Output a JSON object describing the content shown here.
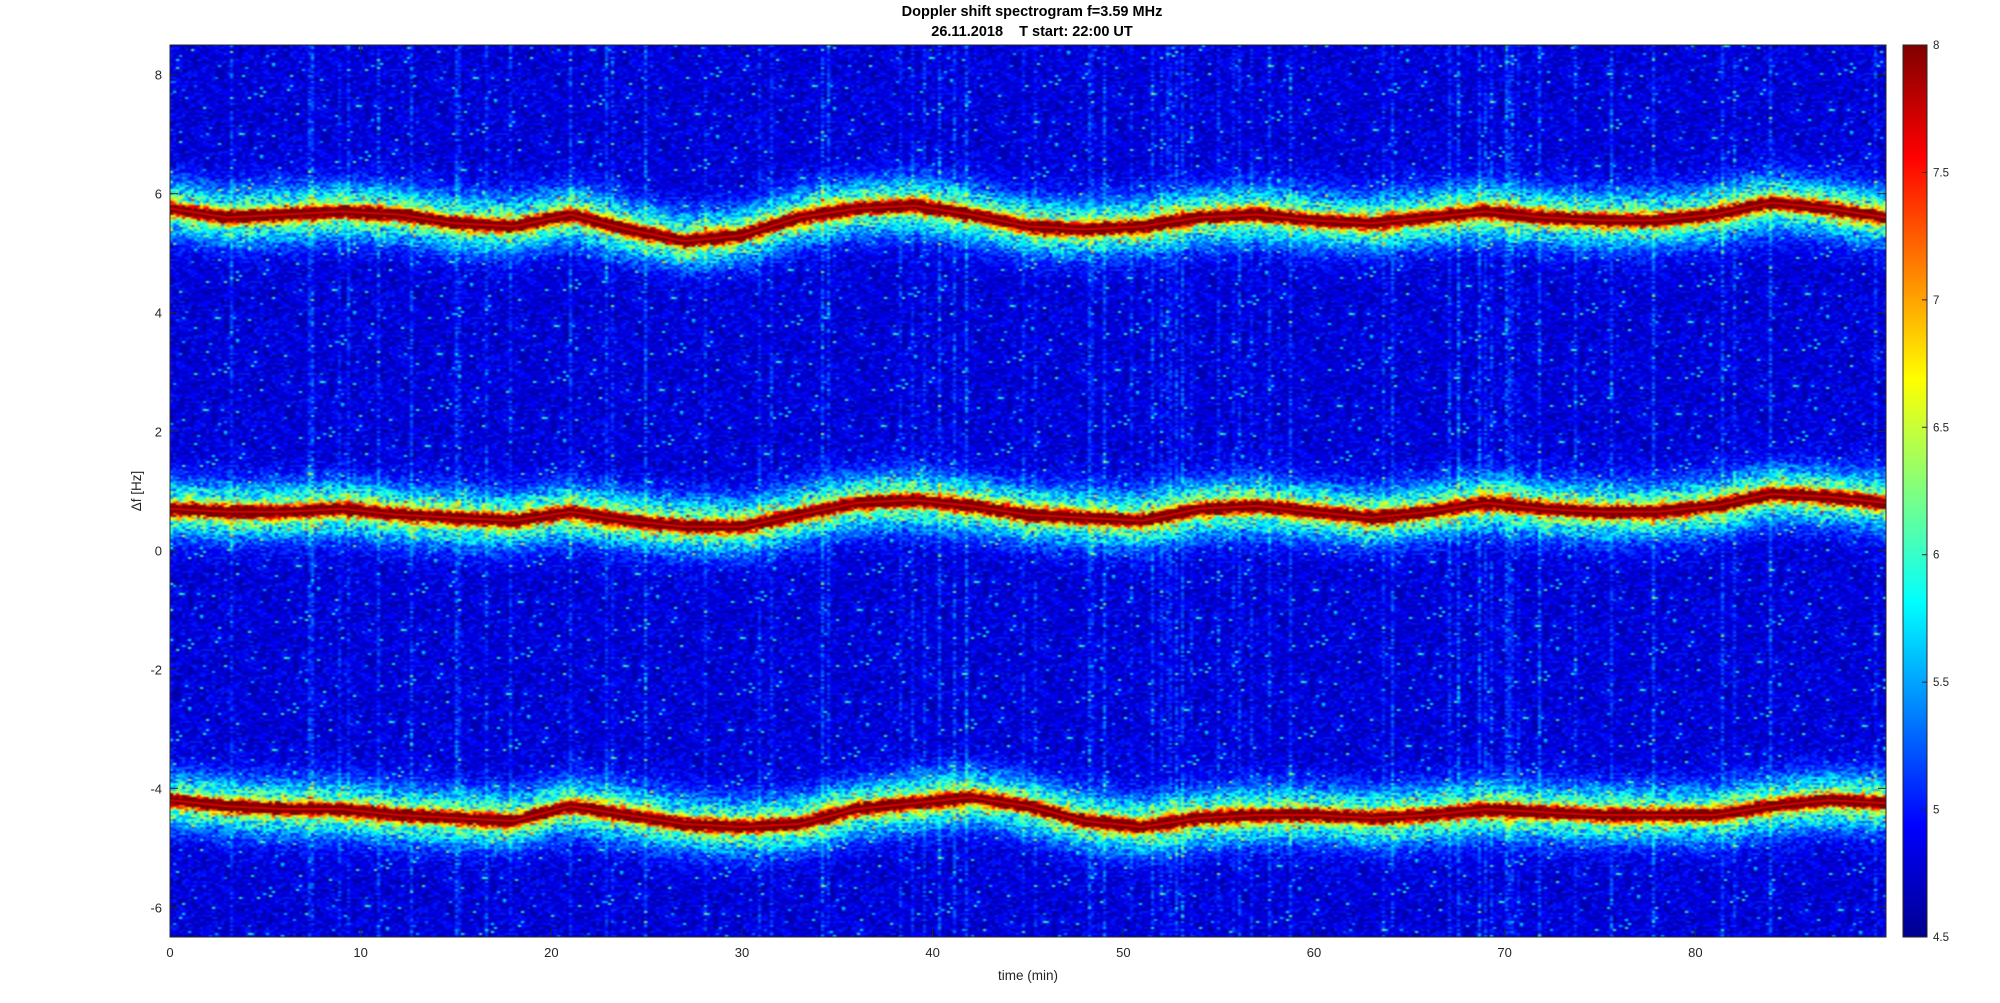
{
  "chart_data": {
    "type": "heatmap",
    "title": "Doppler shift spectrogram f=3.59 MHz",
    "subtitle": "26.11.2018    T start: 22:00 UT",
    "xlabel": "time (min)",
    "ylabel": "Δf [Hz]",
    "xlim": [
      0,
      90
    ],
    "ylim": [
      -6.5,
      8.5
    ],
    "x_ticks": [
      0,
      10,
      20,
      30,
      40,
      50,
      60,
      70,
      80
    ],
    "y_ticks": [
      -6,
      -4,
      -2,
      0,
      2,
      4,
      6,
      8
    ],
    "colormap": "jet",
    "colorbar": {
      "range": [
        4.5,
        8
      ],
      "ticks": [
        4.5,
        5,
        5.5,
        6,
        6.5,
        7,
        7.5,
        8
      ]
    },
    "grid": false,
    "series": [
      {
        "x": [
          0,
          3,
          6,
          9,
          12,
          15,
          18,
          21,
          24,
          27,
          30,
          33,
          36,
          39,
          42,
          45,
          48,
          51,
          54,
          57,
          60,
          63,
          66,
          69,
          72,
          75,
          78,
          81,
          84,
          87,
          90
        ],
        "y": [
          5.75,
          5.6,
          5.65,
          5.7,
          5.65,
          5.5,
          5.45,
          5.65,
          5.4,
          5.2,
          5.3,
          5.6,
          5.75,
          5.8,
          5.65,
          5.45,
          5.4,
          5.45,
          5.6,
          5.65,
          5.55,
          5.5,
          5.6,
          5.7,
          5.6,
          5.55,
          5.55,
          5.65,
          5.85,
          5.75,
          5.6
        ]
      },
      {
        "x": [
          0,
          3,
          6,
          9,
          12,
          15,
          18,
          21,
          24,
          27,
          30,
          33,
          36,
          39,
          42,
          45,
          48,
          51,
          54,
          57,
          60,
          63,
          66,
          69,
          72,
          75,
          78,
          81,
          84,
          87,
          90
        ],
        "y": [
          0.7,
          0.65,
          0.65,
          0.7,
          0.6,
          0.55,
          0.5,
          0.65,
          0.5,
          0.4,
          0.4,
          0.6,
          0.8,
          0.85,
          0.75,
          0.6,
          0.55,
          0.5,
          0.7,
          0.75,
          0.65,
          0.55,
          0.65,
          0.8,
          0.7,
          0.65,
          0.65,
          0.75,
          0.95,
          0.9,
          0.8
        ]
      },
      {
        "x": [
          0,
          3,
          6,
          9,
          12,
          15,
          18,
          21,
          24,
          27,
          30,
          33,
          36,
          39,
          42,
          45,
          48,
          51,
          54,
          57,
          60,
          63,
          66,
          69,
          72,
          75,
          78,
          81,
          84,
          87,
          90
        ],
        "y": [
          -4.2,
          -4.3,
          -4.35,
          -4.35,
          -4.45,
          -4.5,
          -4.55,
          -4.3,
          -4.45,
          -4.6,
          -4.65,
          -4.6,
          -4.35,
          -4.25,
          -4.15,
          -4.3,
          -4.55,
          -4.65,
          -4.5,
          -4.45,
          -4.45,
          -4.5,
          -4.45,
          -4.35,
          -4.4,
          -4.45,
          -4.45,
          -4.45,
          -4.3,
          -4.2,
          -4.25
        ]
      }
    ]
  }
}
